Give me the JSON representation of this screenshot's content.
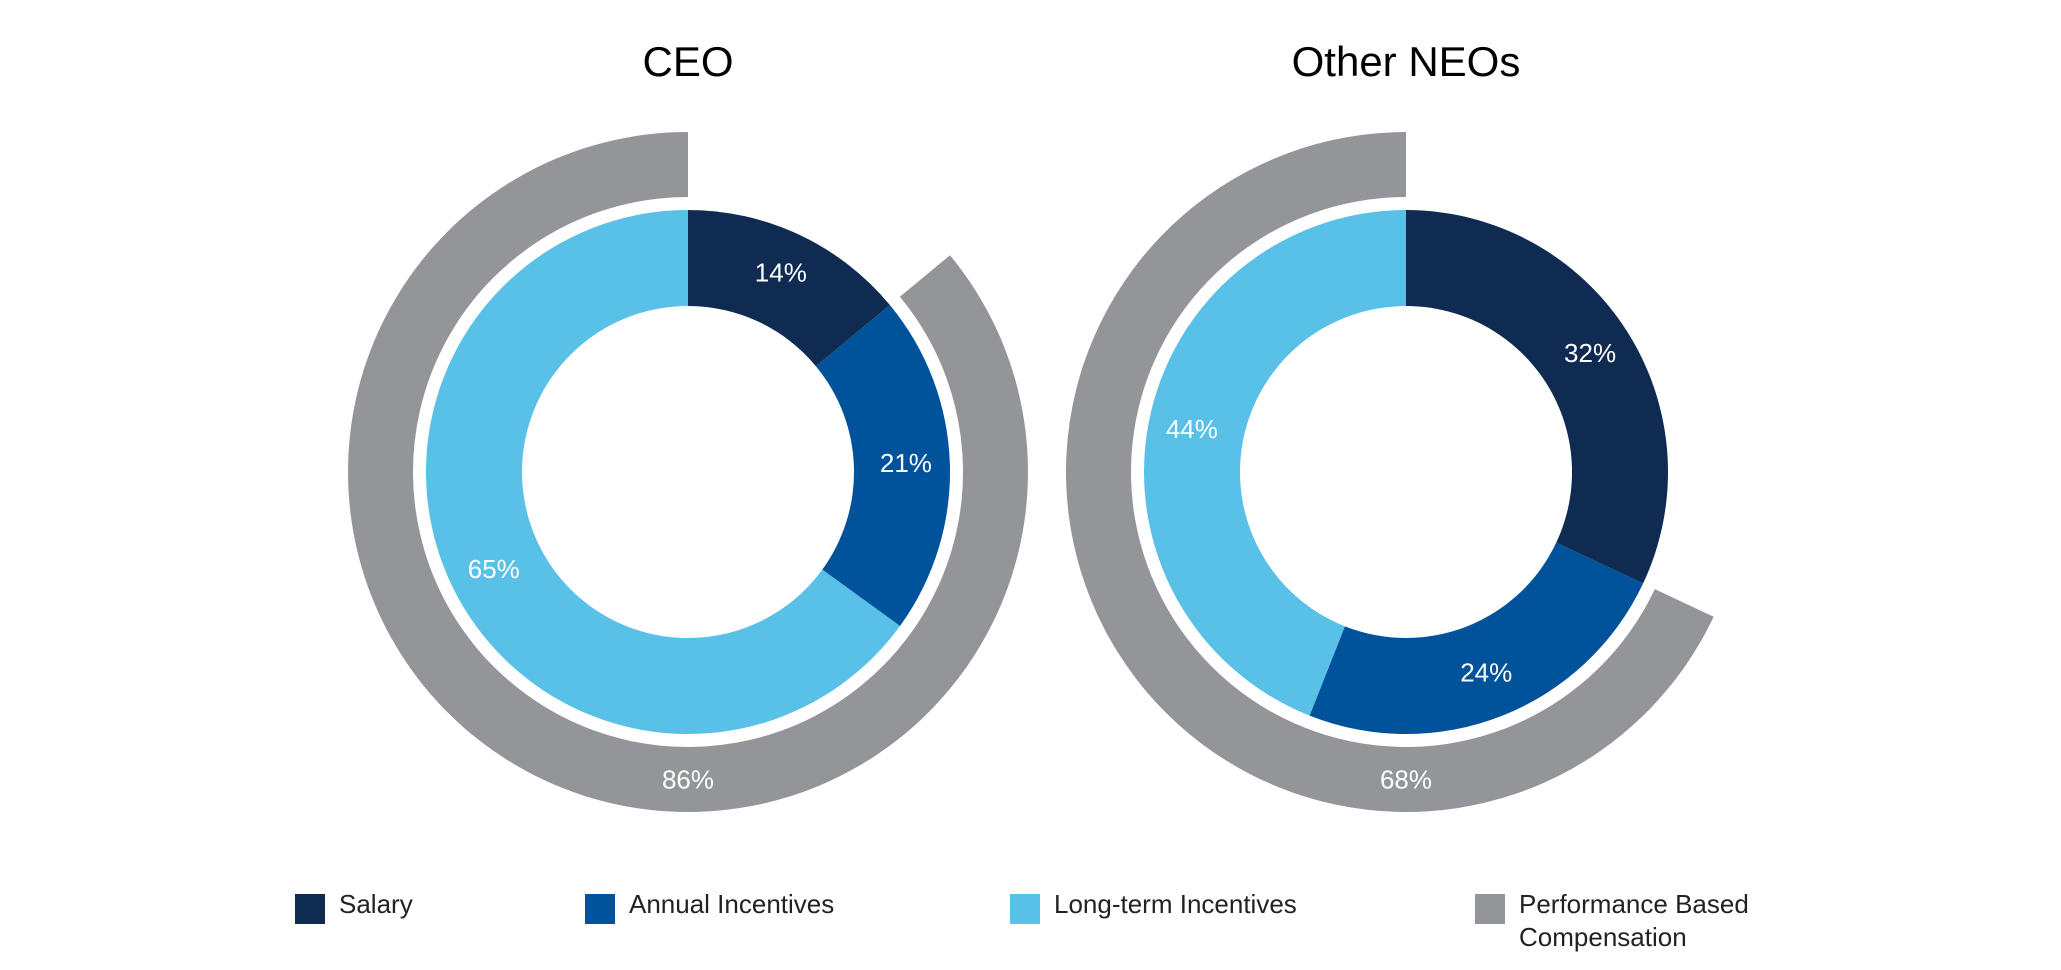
{
  "colors": {
    "salary": "#0f2b52",
    "annual_incentives": "#00539b",
    "long_term_incentives": "#59c0e8",
    "performance_based": "#939598",
    "label_text": "#ffffff"
  },
  "chart_data": [
    {
      "type": "donut",
      "title": "CEO",
      "slices": [
        {
          "name": "Salary",
          "value": 14,
          "label": "14%"
        },
        {
          "name": "Annual Incentives",
          "value": 21,
          "label": "21%"
        },
        {
          "name": "Long-term Incentives",
          "value": 65,
          "label": "65%"
        }
      ],
      "outer_ring": {
        "name": "Performance Based Compensation",
        "value": 86,
        "label": "86%"
      }
    },
    {
      "type": "donut",
      "title": "Other NEOs",
      "slices": [
        {
          "name": "Salary",
          "value": 32,
          "label": "32%"
        },
        {
          "name": "Annual Incentives",
          "value": 24,
          "label": "24%"
        },
        {
          "name": "Long-term Incentives",
          "value": 44,
          "label": "44%"
        }
      ],
      "outer_ring": {
        "name": "Performance Based Compensation",
        "value": 68,
        "label": "68%"
      }
    }
  ],
  "legend": [
    {
      "key": "salary",
      "label": "Salary"
    },
    {
      "key": "annual_incentives",
      "label": "Annual Incentives"
    },
    {
      "key": "long_term_incentives",
      "label": "Long-term Incentives"
    },
    {
      "key": "performance_based",
      "label": "Performance Based Compensation"
    }
  ]
}
